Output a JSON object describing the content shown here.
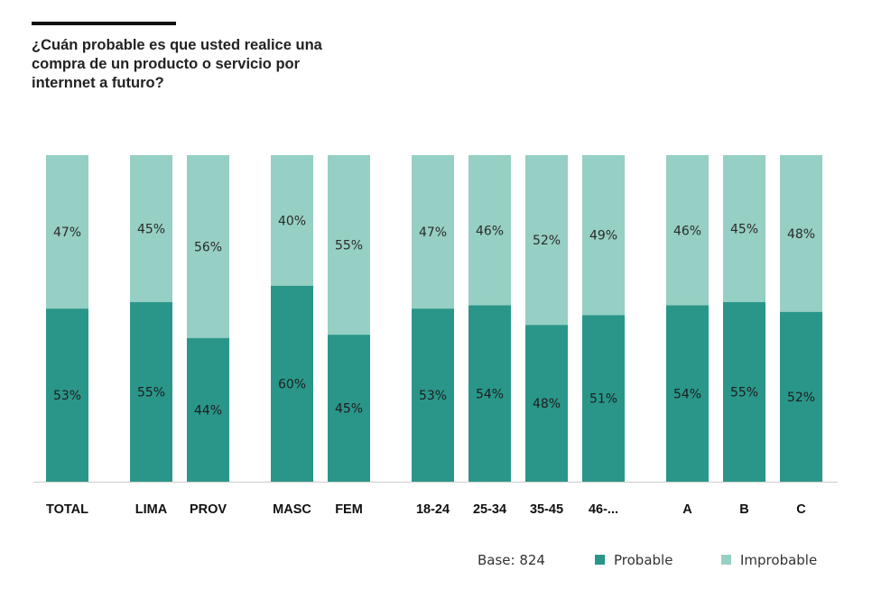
{
  "title": "¿Cuán probable es que usted realice una compra de un producto o servicio por internnet a futuro?",
  "footer": {
    "base": "Base: 824"
  },
  "colors": {
    "probable": "#2a968a",
    "improbable": "#96cfc3",
    "axis": "#cccccc"
  },
  "chart_data": {
    "type": "bar",
    "stacked": true,
    "normalized": true,
    "categories": [
      "TOTAL",
      "LIMA",
      "PROV",
      "MASC",
      "FEM",
      "18-24",
      "25-34",
      "35-45",
      "46-...",
      "A",
      "B",
      "C"
    ],
    "series": [
      {
        "name": "Probable",
        "values": [
          53,
          55,
          44,
          60,
          45,
          53,
          54,
          48,
          51,
          54,
          55,
          52
        ]
      },
      {
        "name": "Improbable",
        "values": [
          47,
          45,
          56,
          40,
          55,
          47,
          46,
          52,
          49,
          46,
          45,
          48
        ]
      }
    ],
    "value_suffix": "%",
    "ylim": [
      0,
      100
    ],
    "grid": false,
    "legend_position": "bottom-right"
  }
}
